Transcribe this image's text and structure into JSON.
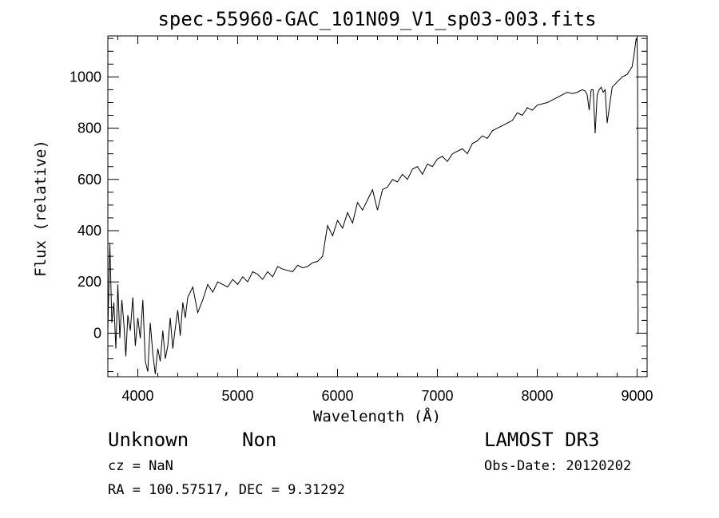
{
  "chart_data": {
    "type": "line",
    "title": "spec-55960-GAC_101N09_V1_sp03-003.fits",
    "xlabel": "Wavelength (Å)",
    "ylabel": "Flux (relative)",
    "xlim": [
      3700,
      9100
    ],
    "ylim": [
      -170,
      1160
    ],
    "xticks": [
      4000,
      5000,
      6000,
      7000,
      8000,
      9000
    ],
    "yticks": [
      0,
      200,
      400,
      600,
      800,
      1000
    ],
    "grid": false,
    "series": [
      {
        "name": "flux",
        "x": [
          3700,
          3720,
          3740,
          3760,
          3780,
          3800,
          3820,
          3840,
          3860,
          3880,
          3900,
          3925,
          3950,
          3975,
          4000,
          4025,
          4050,
          4075,
          4100,
          4125,
          4150,
          4175,
          4200,
          4225,
          4250,
          4275,
          4300,
          4325,
          4350,
          4375,
          4400,
          4425,
          4450,
          4475,
          4500,
          4550,
          4600,
          4650,
          4700,
          4750,
          4800,
          4850,
          4900,
          4950,
          5000,
          5050,
          5100,
          5150,
          5200,
          5250,
          5300,
          5350,
          5400,
          5450,
          5500,
          5550,
          5600,
          5650,
          5700,
          5750,
          5800,
          5850,
          5900,
          5950,
          6000,
          6050,
          6100,
          6150,
          6200,
          6250,
          6300,
          6350,
          6400,
          6450,
          6500,
          6550,
          6600,
          6650,
          6700,
          6750,
          6800,
          6850,
          6900,
          6950,
          7000,
          7050,
          7100,
          7150,
          7200,
          7250,
          7300,
          7350,
          7400,
          7450,
          7500,
          7550,
          7600,
          7650,
          7700,
          7750,
          7800,
          7850,
          7900,
          7950,
          8000,
          8050,
          8100,
          8150,
          8200,
          8250,
          8300,
          8350,
          8400,
          8450,
          8480,
          8500,
          8520,
          8540,
          8560,
          8580,
          8600,
          8620,
          8640,
          8660,
          8680,
          8700,
          8750,
          8800,
          8850,
          8900,
          8950,
          8970,
          8990,
          9000,
          9005,
          9010
        ],
        "y": [
          10,
          350,
          40,
          120,
          -60,
          190,
          -20,
          130,
          40,
          -90,
          70,
          10,
          140,
          -50,
          60,
          -20,
          130,
          -110,
          -150,
          40,
          -80,
          -160,
          -60,
          -110,
          10,
          -100,
          -50,
          60,
          -60,
          20,
          90,
          -10,
          120,
          60,
          140,
          180,
          80,
          130,
          190,
          160,
          200,
          190,
          180,
          210,
          190,
          220,
          200,
          240,
          230,
          210,
          240,
          220,
          260,
          250,
          245,
          240,
          265,
          255,
          260,
          275,
          280,
          300,
          420,
          380,
          440,
          410,
          470,
          430,
          510,
          480,
          520,
          560,
          480,
          560,
          570,
          600,
          590,
          620,
          600,
          640,
          650,
          620,
          660,
          650,
          680,
          690,
          670,
          700,
          710,
          720,
          700,
          740,
          750,
          770,
          760,
          790,
          800,
          810,
          820,
          830,
          860,
          850,
          880,
          870,
          890,
          895,
          900,
          910,
          920,
          930,
          940,
          935,
          940,
          950,
          945,
          930,
          870,
          950,
          950,
          780,
          930,
          950,
          960,
          940,
          950,
          820,
          960,
          980,
          1000,
          1010,
          1040,
          1090,
          1150,
          1140,
          1000,
          0
        ]
      }
    ]
  },
  "info": {
    "object_class": "Unknown",
    "subclass": "Non",
    "survey": "LAMOST DR3",
    "redshift": "cz = NaN",
    "obs_date": "Obs-Date: 20120202",
    "coordinates": "RA = 100.57517, DEC =    9.31292"
  }
}
